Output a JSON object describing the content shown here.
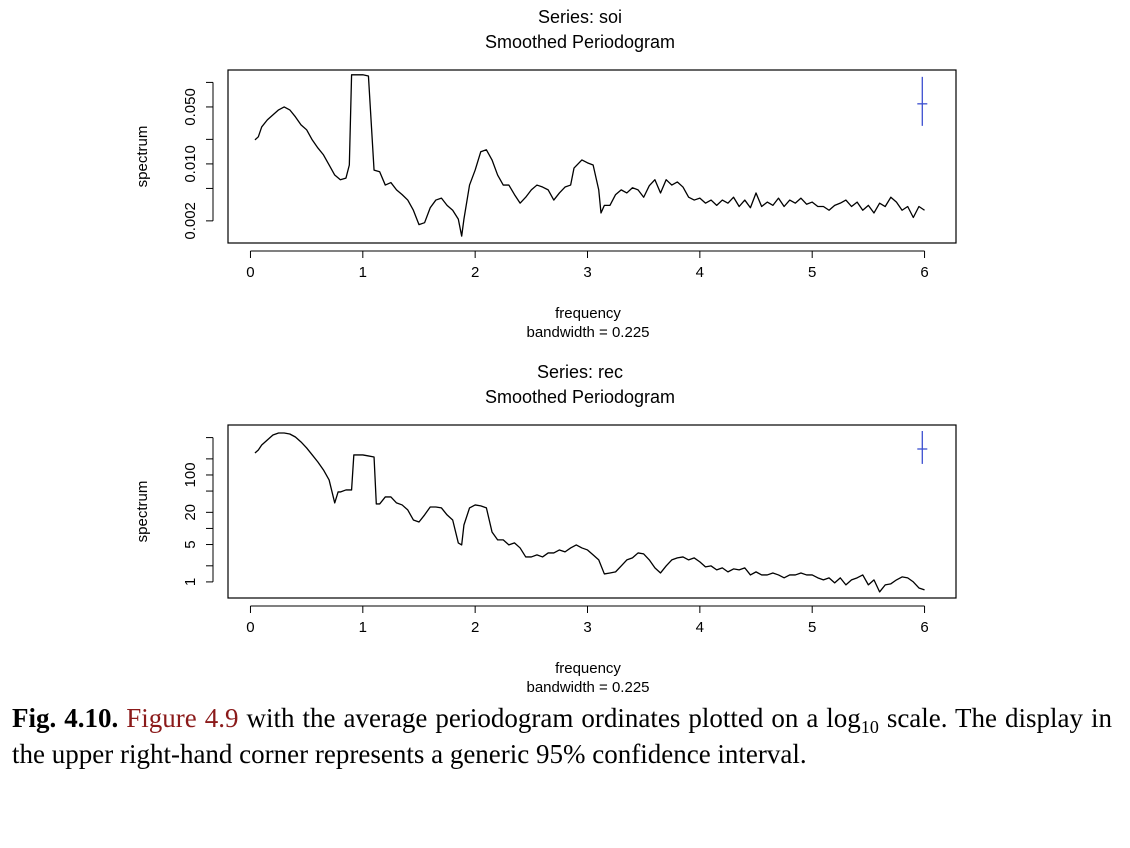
{
  "chart_data": [
    {
      "type": "line",
      "title": "Series: soi",
      "subtitle": "Smoothed Periodogram",
      "xlabel": "frequency",
      "xlabel2": "bandwidth = 0.225",
      "ylabel": "spectrum",
      "log_y": true,
      "color": "#000000",
      "xlim": [
        -0.2,
        6.28
      ],
      "ylim": [
        0.00107,
        0.142
      ],
      "xticks": [
        0,
        1,
        2,
        3,
        4,
        5,
        6
      ],
      "yticks": [
        0.002,
        {
          "value": 0.01,
          "label": "0.010"
        },
        {
          "value": 0.05,
          "label": "0.050"
        }
      ],
      "yticks_unlabeled": [
        0.005,
        0.02,
        0.1
      ],
      "x": [
        0.04,
        0.07,
        0.1,
        0.15,
        0.2,
        0.25,
        0.3,
        0.35,
        0.4,
        0.45,
        0.5,
        0.55,
        0.6,
        0.65,
        0.7,
        0.75,
        0.8,
        0.85,
        0.88,
        0.9,
        0.95,
        1.0,
        1.05,
        1.1,
        1.15,
        1.2,
        1.25,
        1.3,
        1.35,
        1.4,
        1.45,
        1.5,
        1.55,
        1.6,
        1.65,
        1.7,
        1.75,
        1.8,
        1.85,
        1.88,
        1.9,
        1.95,
        2.0,
        2.05,
        2.1,
        2.15,
        2.2,
        2.25,
        2.3,
        2.35,
        2.4,
        2.45,
        2.5,
        2.55,
        2.6,
        2.65,
        2.7,
        2.75,
        2.8,
        2.85,
        2.88,
        2.95,
        3.0,
        3.05,
        3.1,
        3.12,
        3.15,
        3.2,
        3.25,
        3.3,
        3.35,
        3.4,
        3.45,
        3.5,
        3.55,
        3.6,
        3.65,
        3.7,
        3.75,
        3.8,
        3.85,
        3.9,
        3.95,
        4.0,
        4.05,
        4.1,
        4.15,
        4.2,
        4.25,
        4.3,
        4.35,
        4.4,
        4.45,
        4.5,
        4.55,
        4.6,
        4.65,
        4.7,
        4.75,
        4.8,
        4.85,
        4.9,
        4.95,
        5.0,
        5.05,
        5.1,
        5.15,
        5.2,
        5.25,
        5.3,
        5.35,
        5.4,
        5.45,
        5.5,
        5.55,
        5.6,
        5.65,
        5.7,
        5.75,
        5.8,
        5.85,
        5.9,
        5.95,
        6.0
      ],
      "values": [
        0.0197,
        0.0215,
        0.0284,
        0.0347,
        0.04,
        0.046,
        0.05,
        0.046,
        0.0378,
        0.0301,
        0.0262,
        0.0197,
        0.0157,
        0.0129,
        0.0097,
        0.0073,
        0.0064,
        0.0067,
        0.0097,
        0.124,
        0.124,
        0.124,
        0.12,
        0.0084,
        0.008,
        0.0055,
        0.0059,
        0.0048,
        0.0042,
        0.0036,
        0.0027,
        0.0018,
        0.0019,
        0.0029,
        0.0036,
        0.0038,
        0.0031,
        0.0027,
        0.0021,
        0.0013,
        0.0021,
        0.0055,
        0.0084,
        0.0141,
        0.0149,
        0.0112,
        0.0073,
        0.0055,
        0.0055,
        0.0042,
        0.0033,
        0.0039,
        0.0048,
        0.0055,
        0.0052,
        0.0048,
        0.0036,
        0.0044,
        0.0052,
        0.0055,
        0.0089,
        0.0112,
        0.0103,
        0.0097,
        0.0048,
        0.0025,
        0.0031,
        0.0031,
        0.0042,
        0.0048,
        0.0044,
        0.0051,
        0.0048,
        0.0039,
        0.0054,
        0.0064,
        0.0044,
        0.0064,
        0.0055,
        0.006,
        0.0052,
        0.0039,
        0.0036,
        0.0038,
        0.0033,
        0.0036,
        0.0031,
        0.0036,
        0.0033,
        0.0039,
        0.003,
        0.0036,
        0.0029,
        0.0044,
        0.003,
        0.0034,
        0.0031,
        0.0038,
        0.003,
        0.0036,
        0.0033,
        0.0038,
        0.0032,
        0.0034,
        0.003,
        0.003,
        0.0027,
        0.0031,
        0.0033,
        0.0036,
        0.003,
        0.0034,
        0.0027,
        0.0031,
        0.0025,
        0.0033,
        0.003,
        0.0039,
        0.0034,
        0.0027,
        0.003,
        0.0022,
        0.003,
        0.0027
      ],
      "ci": {
        "x": 5.98,
        "center": 0.0546,
        "lower": 0.0293,
        "upper": 0.117,
        "color": "#3b4fcf"
      }
    },
    {
      "type": "line",
      "title": "Series: rec",
      "subtitle": "Smoothed Periodogram",
      "xlabel": "frequency",
      "xlabel2": "bandwidth = 0.225",
      "ylabel": "spectrum",
      "log_y": true,
      "color": "#000000",
      "xlim": [
        -0.2,
        6.28
      ],
      "ylim": [
        0.5,
        860
      ],
      "xticks": [
        0,
        1,
        2,
        3,
        4,
        5,
        6
      ],
      "yticks": [
        1,
        5,
        20,
        100
      ],
      "yticks_unlabeled": [
        2,
        10,
        50,
        200,
        500
      ],
      "x": [
        0.04,
        0.07,
        0.1,
        0.15,
        0.2,
        0.25,
        0.3,
        0.35,
        0.4,
        0.45,
        0.5,
        0.55,
        0.6,
        0.65,
        0.7,
        0.75,
        0.78,
        0.8,
        0.85,
        0.9,
        0.92,
        1.0,
        1.05,
        1.1,
        1.12,
        1.15,
        1.2,
        1.25,
        1.3,
        1.35,
        1.4,
        1.45,
        1.5,
        1.55,
        1.6,
        1.65,
        1.7,
        1.75,
        1.8,
        1.85,
        1.88,
        1.9,
        1.95,
        2.0,
        2.05,
        2.1,
        2.15,
        2.2,
        2.25,
        2.3,
        2.35,
        2.4,
        2.45,
        2.5,
        2.55,
        2.6,
        2.65,
        2.7,
        2.75,
        2.8,
        2.85,
        2.9,
        2.95,
        3.0,
        3.05,
        3.1,
        3.15,
        3.2,
        3.25,
        3.3,
        3.35,
        3.4,
        3.45,
        3.5,
        3.55,
        3.6,
        3.65,
        3.7,
        3.75,
        3.8,
        3.85,
        3.9,
        3.95,
        4.0,
        4.05,
        4.1,
        4.15,
        4.2,
        4.25,
        4.3,
        4.35,
        4.4,
        4.45,
        4.5,
        4.55,
        4.6,
        4.65,
        4.7,
        4.75,
        4.8,
        4.85,
        4.9,
        4.95,
        5.0,
        5.05,
        5.1,
        5.15,
        5.2,
        5.25,
        5.3,
        5.35,
        5.4,
        5.45,
        5.5,
        5.55,
        5.6,
        5.65,
        5.7,
        5.75,
        5.8,
        5.85,
        5.9,
        5.95,
        6.0
      ],
      "values": [
        258,
        293,
        364,
        451,
        560,
        610,
        610,
        584,
        513,
        414,
        320,
        237,
        175,
        124,
        80.7,
        30,
        48.1,
        48.1,
        52.5,
        52.5,
        237,
        237,
        227,
        217,
        28.7,
        28.7,
        38.8,
        38.8,
        30,
        27.5,
        22.2,
        14.4,
        13.2,
        17.9,
        25.2,
        25.2,
        24.2,
        17.9,
        14.4,
        5.36,
        4.92,
        11.6,
        24.2,
        27.5,
        26.4,
        24.2,
        8.6,
        6.1,
        6.1,
        4.92,
        5.36,
        4.32,
        2.93,
        2.93,
        3.2,
        2.93,
        3.48,
        3.48,
        3.96,
        3.64,
        4.32,
        4.92,
        4.32,
        3.96,
        3.2,
        2.58,
        1.41,
        1.47,
        1.54,
        1.99,
        2.58,
        2.81,
        3.48,
        3.34,
        2.58,
        1.83,
        1.47,
        1.99,
        2.58,
        2.81,
        2.93,
        2.58,
        2.81,
        2.37,
        1.91,
        1.99,
        1.68,
        1.83,
        1.54,
        1.75,
        1.68,
        1.83,
        1.35,
        1.54,
        1.35,
        1.35,
        1.47,
        1.35,
        1.19,
        1.35,
        1.35,
        1.47,
        1.35,
        1.35,
        1.19,
        1.09,
        1.19,
        0.96,
        1.19,
        0.88,
        1.09,
        1.19,
        1.35,
        0.88,
        1.09,
        0.65,
        0.88,
        0.92,
        1.09,
        1.24,
        1.19,
        1,
        0.77,
        0.71
      ],
      "ci": {
        "x": 5.98,
        "center": 306,
        "lower": 161,
        "upper": 664,
        "color": "#3b4fcf"
      }
    }
  ],
  "caption": {
    "label": "Fig. 4.10.",
    "reference": "Figure 4.9",
    "text": "with the average periodogram ordinates plotted on a log",
    "subscript": "10",
    "text_end": "scale. The display in the upper right-hand corner represents a generic 95% confidence interval."
  }
}
